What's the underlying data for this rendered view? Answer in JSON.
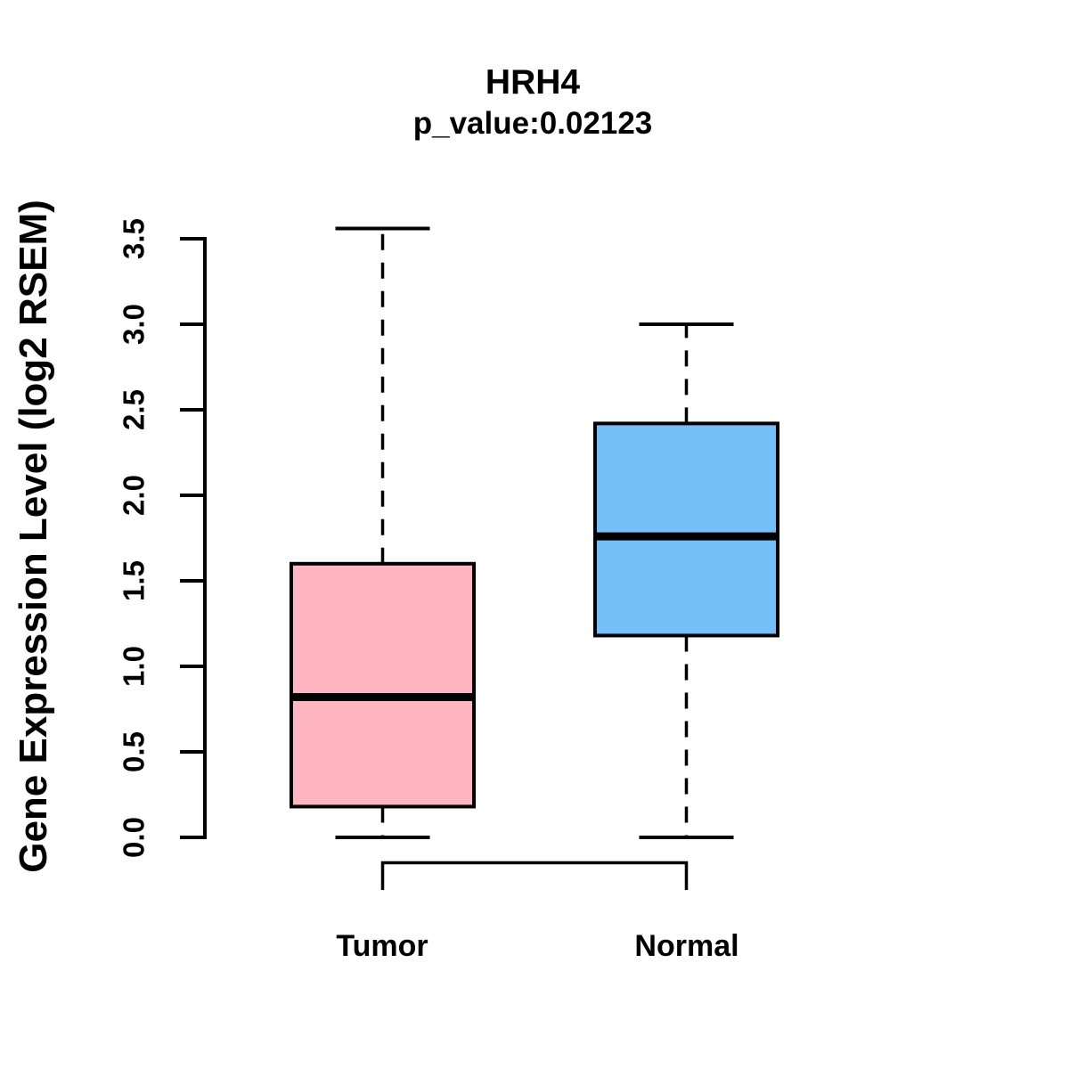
{
  "figure": {
    "background_color": "#FFFFFF",
    "stroke_color": "#000000"
  },
  "chart_data": {
    "type": "boxplot",
    "title": "HRH4",
    "subtitle": "p_value:0.02123",
    "ylabel": "Gene Expression Level (log2 RSEM)",
    "xlabel": "",
    "ylim": [
      0.0,
      3.5
    ],
    "ytick_values": [
      0.0,
      0.5,
      1.0,
      1.5,
      2.0,
      2.5,
      3.0,
      3.5
    ],
    "ytick_labels": [
      "0.0",
      "0.5",
      "1.0",
      "1.5",
      "2.0",
      "2.5",
      "3.0",
      "3.5"
    ],
    "categories": [
      "Tumor",
      "Normal"
    ],
    "grid": false,
    "legend": false,
    "series": [
      {
        "name": "Tumor",
        "fill_color": "#FFB6C1",
        "lower_whisker": 0.0,
        "q1": 0.18,
        "median": 0.82,
        "q3": 1.6,
        "upper_whisker": 3.56
      },
      {
        "name": "Normal",
        "fill_color": "#74BFF7",
        "lower_whisker": 0.0,
        "q1": 1.18,
        "median": 1.76,
        "q3": 2.42,
        "upper_whisker": 3.0
      }
    ],
    "comparison_bracket": {
      "between": [
        "Tumor",
        "Normal"
      ],
      "side": "below"
    }
  }
}
